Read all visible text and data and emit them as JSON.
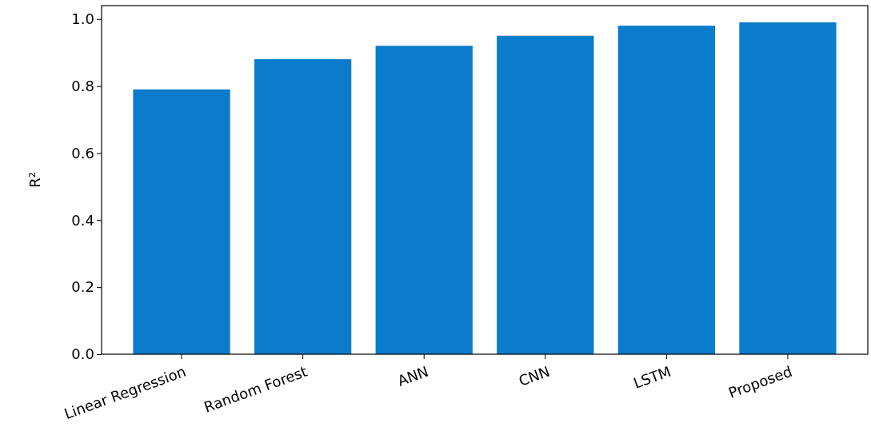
{
  "chart_data": {
    "type": "bar",
    "ylabel": "R²",
    "categories": [
      "Linear Regression",
      "Random Forest",
      "ANN",
      "CNN",
      "LSTM",
      "Proposed"
    ],
    "values": [
      0.79,
      0.88,
      0.92,
      0.95,
      0.98,
      0.99
    ],
    "color": "#0b7bcc",
    "ylim": [
      0,
      1.04
    ],
    "yticks": [
      {
        "value": 0,
        "label": "0.0"
      },
      {
        "value": 0.2,
        "label": "0.2"
      },
      {
        "value": 0.4,
        "label": "0.4"
      },
      {
        "value": 0.6,
        "label": "0.6"
      },
      {
        "value": 0.8,
        "label": "0.8"
      },
      {
        "value": 1,
        "label": "1.0"
      }
    ],
    "grid": false
  }
}
